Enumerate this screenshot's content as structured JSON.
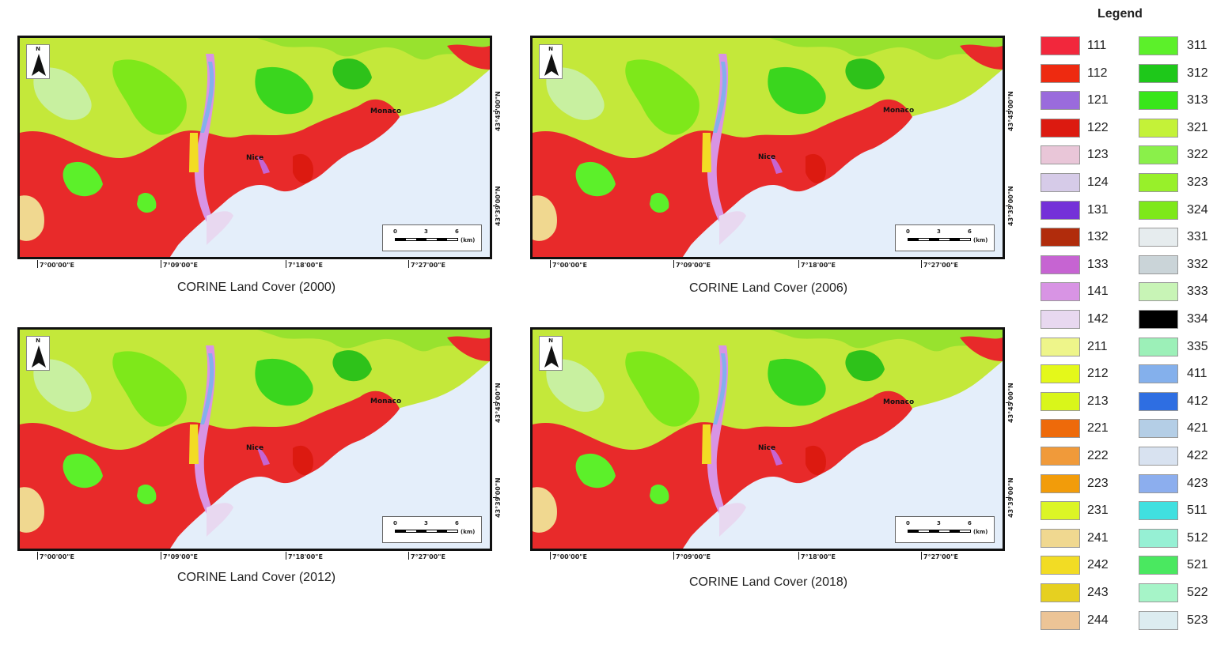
{
  "maps": [
    {
      "caption": "CORINE Land Cover (2000)",
      "cities": {
        "nice": "Nice",
        "monaco": "Monaco"
      },
      "north": "N",
      "lon": [
        "7°00'00\"E",
        "7°09'00\"E",
        "7°18'00\"E",
        "7°27'00\"E"
      ],
      "lat": [
        "43°45'00\"N",
        "43°39'00\"N"
      ],
      "scale": {
        "t0": "0",
        "t1": "3",
        "t2": "6",
        "unit": "(km)"
      }
    },
    {
      "caption": "CORINE Land Cover (2006)",
      "cities": {
        "nice": "Nice",
        "monaco": "Monaco"
      },
      "north": "N",
      "lon": [
        "7°00'00\"E",
        "7°09'00\"E",
        "7°18'00\"E",
        "7°27'00\"E"
      ],
      "lat": [
        "43°45'00\"N",
        "43°39'00\"N"
      ],
      "scale": {
        "t0": "0",
        "t1": "3",
        "t2": "6",
        "unit": "(km)"
      }
    },
    {
      "caption": "CORINE Land Cover (2012)",
      "cities": {
        "nice": "Nice",
        "monaco": "Monaco"
      },
      "north": "N",
      "lon": [
        "7°00'00\"E",
        "7°09'00\"E",
        "7°18'00\"E",
        "7°27'00\"E"
      ],
      "lat": [
        "43°45'00\"N",
        "43°39'00\"N"
      ],
      "scale": {
        "t0": "0",
        "t1": "3",
        "t2": "6",
        "unit": "(km)"
      }
    },
    {
      "caption": "CORINE Land Cover (2018)",
      "cities": {
        "nice": "Nice",
        "monaco": "Monaco"
      },
      "north": "N",
      "lon": [
        "7°00'00\"E",
        "7°09'00\"E",
        "7°18'00\"E",
        "7°27'00\"E"
      ],
      "lat": [
        "43°45'00\"N",
        "43°39'00\"N"
      ],
      "scale": {
        "t0": "0",
        "t1": "3",
        "t2": "6",
        "unit": "(km)"
      }
    }
  ],
  "legend": {
    "title": "Legend",
    "col1": [
      {
        "code": "111",
        "color": "#f2273c"
      },
      {
        "code": "112",
        "color": "#ee2a10"
      },
      {
        "code": "121",
        "color": "#9a6bdc"
      },
      {
        "code": "122",
        "color": "#dc1a10"
      },
      {
        "code": "123",
        "color": "#e9c6d8"
      },
      {
        "code": "124",
        "color": "#d6cbe8"
      },
      {
        "code": "131",
        "color": "#7431d8"
      },
      {
        "code": "132",
        "color": "#b12c0c"
      },
      {
        "code": "133",
        "color": "#c664d2"
      },
      {
        "code": "141",
        "color": "#d894e4"
      },
      {
        "code": "142",
        "color": "#e8d8f0"
      },
      {
        "code": "211",
        "color": "#eef58a"
      },
      {
        "code": "212",
        "color": "#e4f81a"
      },
      {
        "code": "213",
        "color": "#d9f61a"
      },
      {
        "code": "221",
        "color": "#ee6a0a"
      },
      {
        "code": "222",
        "color": "#f09a3a"
      },
      {
        "code": "223",
        "color": "#f29c0a"
      },
      {
        "code": "231",
        "color": "#dcf526"
      },
      {
        "code": "241",
        "color": "#f0d890"
      },
      {
        "code": "242",
        "color": "#f2dc24"
      },
      {
        "code": "243",
        "color": "#e6d020"
      },
      {
        "code": "244",
        "color": "#ecc496"
      }
    ],
    "col2": [
      {
        "code": "311",
        "color": "#5cf02a"
      },
      {
        "code": "312",
        "color": "#1ec81a"
      },
      {
        "code": "313",
        "color": "#38e61a"
      },
      {
        "code": "321",
        "color": "#c4f238"
      },
      {
        "code": "322",
        "color": "#8af04a"
      },
      {
        "code": "323",
        "color": "#98f02a"
      },
      {
        "code": "324",
        "color": "#7ee81a"
      },
      {
        "code": "331",
        "color": "#e6ecee"
      },
      {
        "code": "332",
        "color": "#cad4d8"
      },
      {
        "code": "333",
        "color": "#c8f4b6"
      },
      {
        "code": "334",
        "color": "#000000"
      },
      {
        "code": "335",
        "color": "#9cf0b8"
      },
      {
        "code": "411",
        "color": "#84b0ec"
      },
      {
        "code": "412",
        "color": "#2e6ee2"
      },
      {
        "code": "421",
        "color": "#b4cee6"
      },
      {
        "code": "422",
        "color": "#d8e2f0"
      },
      {
        "code": "423",
        "color": "#8caeee"
      },
      {
        "code": "511",
        "color": "#40e0e0"
      },
      {
        "code": "512",
        "color": "#96f0d4"
      },
      {
        "code": "521",
        "color": "#4ae860"
      },
      {
        "code": "522",
        "color": "#a6f4c8"
      },
      {
        "code": "523",
        "color": "#dcecf0"
      }
    ]
  }
}
